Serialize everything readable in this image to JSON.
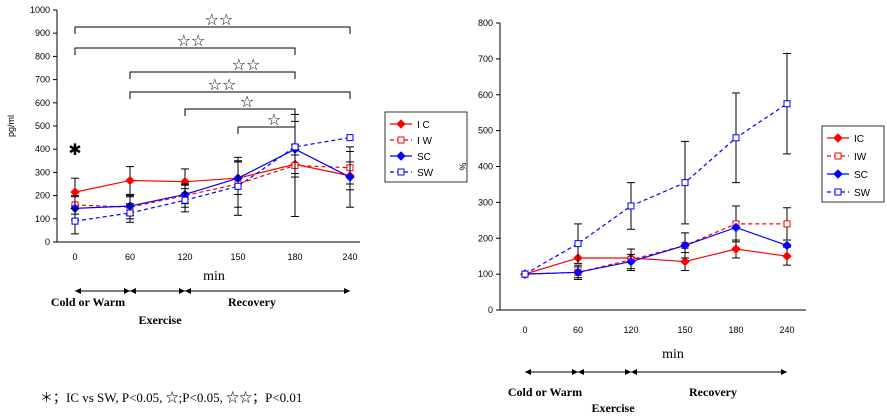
{
  "chart_data": [
    {
      "type": "line",
      "ylabel": "pg/ml",
      "xlabel": "min",
      "x": [
        0,
        60,
        120,
        150,
        180,
        240
      ],
      "x_tick_labels": [
        "0",
        "60",
        "120",
        "150",
        "180",
        "240"
      ],
      "ylim": [
        0,
        1000
      ],
      "y_ticks": [
        0,
        100,
        200,
        300,
        400,
        500,
        600,
        700,
        800,
        900,
        1000
      ],
      "grid": false,
      "legend_position": "right",
      "series": [
        {
          "name": "I C",
          "color": "#ff0000",
          "dashed": false,
          "marker": "diamond-filled",
          "values": [
            215,
            265,
            260,
            275,
            335,
            285
          ],
          "error": [
            60,
            60,
            55,
            70,
            40,
            60
          ]
        },
        {
          "name": "I W",
          "color": "#ff0000",
          "dashed": true,
          "marker": "square-open",
          "values": [
            160,
            150,
            200,
            250,
            330,
            320
          ],
          "error": [
            40,
            50,
            50,
            100,
            220,
            70
          ]
        },
        {
          "name": "SC",
          "color": "#0000ff",
          "dashed": false,
          "marker": "diamond-filled",
          "values": [
            145,
            155,
            205,
            275,
            400,
            280
          ],
          "error": [
            50,
            40,
            40,
            70,
            120,
            130
          ]
        },
        {
          "name": "SW",
          "color": "#0000ff",
          "dashed": true,
          "marker": "square-open",
          "values": [
            90,
            125,
            180,
            240,
            410,
            450
          ],
          "error": [
            55,
            40,
            50,
            125,
            10,
            0
          ]
        }
      ],
      "annotation_marker": "✱",
      "significance": [
        {
          "label": "☆☆",
          "from_x": 0,
          "to_x": 240
        },
        {
          "label": "☆☆",
          "from_x": 0,
          "to_x": 180
        },
        {
          "label": "☆☆",
          "from_x": 60,
          "to_x": 180
        },
        {
          "label": "☆☆",
          "from_x": 60,
          "to_x": 240
        },
        {
          "label": "☆",
          "from_x": 120,
          "to_x": 180
        },
        {
          "label": "☆",
          "from_x": 150,
          "to_x": 180
        }
      ],
      "phases": [
        {
          "label": "Cold or Warm",
          "from_x": 0,
          "to_x": 60
        },
        {
          "label": "Exercise",
          "from_x": 60,
          "to_x": 120
        },
        {
          "label": "Recovery",
          "from_x": 120,
          "to_x": 240
        }
      ],
      "footnote": "＊；IC vs SW, P<0.05, ☆;P<0.05, ☆☆；P<0.01"
    },
    {
      "type": "line",
      "ylabel": "%",
      "xlabel": "min",
      "x": [
        0,
        60,
        120,
        150,
        180,
        240
      ],
      "x_tick_labels": [
        "0",
        "60",
        "120",
        "150",
        "180",
        "240"
      ],
      "ylim": [
        0,
        800
      ],
      "y_ticks": [
        0,
        100,
        200,
        300,
        400,
        500,
        600,
        700,
        800
      ],
      "grid": false,
      "legend_position": "right",
      "series": [
        {
          "name": "IC",
          "color": "#ff0000",
          "dashed": false,
          "marker": "diamond-filled",
          "values": [
            100,
            145,
            145,
            135,
            170,
            150
          ],
          "error": [
            0,
            0,
            0,
            25,
            25,
            25
          ]
        },
        {
          "name": "IW",
          "color": "#ff0000",
          "dashed": true,
          "marker": "square-open",
          "values": [
            100,
            105,
            140,
            180,
            240,
            240
          ],
          "error": [
            0,
            20,
            30,
            0,
            50,
            45
          ]
        },
        {
          "name": "SC",
          "color": "#0000ff",
          "dashed": false,
          "marker": "diamond-filled",
          "values": [
            100,
            105,
            135,
            180,
            230,
            180
          ],
          "error": [
            0,
            15,
            20,
            35,
            0,
            0
          ]
        },
        {
          "name": "SW",
          "color": "#0000ff",
          "dashed": true,
          "marker": "square-open",
          "values": [
            100,
            185,
            290,
            355,
            480,
            575
          ],
          "error": [
            0,
            55,
            65,
            115,
            125,
            140
          ]
        }
      ],
      "phases": [
        {
          "label": "Cold or Warm",
          "from_x": 0,
          "to_x": 60
        },
        {
          "label": "Exercise",
          "from_x": 60,
          "to_x": 120
        },
        {
          "label": "Recovery",
          "from_x": 120,
          "to_x": 240
        }
      ]
    }
  ]
}
